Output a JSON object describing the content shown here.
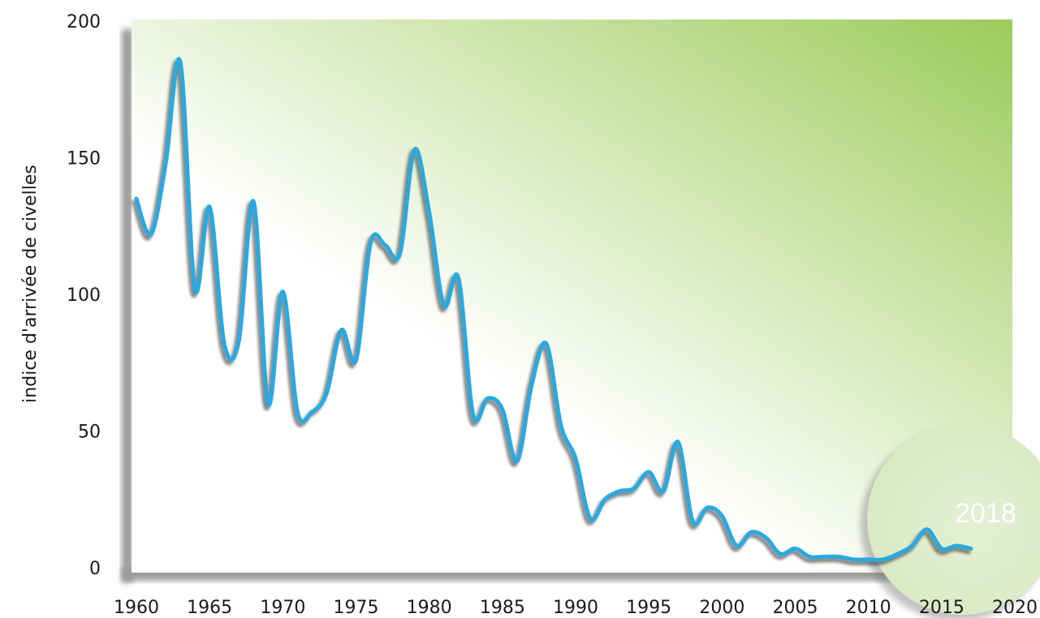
{
  "colors": {
    "line": "#29a9e0",
    "line_shadow": "#2a2a2a",
    "gradient_start": "#ffffff",
    "gradient_end": "#9ccb5a",
    "annotation_circle": "#d8e9c2",
    "text": "#1a1a1a"
  },
  "chart_data": {
    "type": "line",
    "title": "",
    "xlabel": "",
    "ylabel": "indice d'arrivée de civelles",
    "xlim": [
      1960,
      2020
    ],
    "ylim": [
      0,
      200
    ],
    "x_ticks": [
      "1960",
      "1965",
      "1970",
      "1975",
      "1980",
      "1985",
      "1990",
      "1995",
      "2000",
      "2005",
      "2010",
      "2015",
      "2020"
    ],
    "y_ticks": [
      "0",
      "50",
      "100",
      "150",
      "200"
    ],
    "grid": false,
    "legend": "none",
    "annotation": {
      "text": "2018",
      "x": 2017.5,
      "y": 13
    },
    "series": [
      {
        "x": [
          1960,
          1961,
          1962,
          1963,
          1964,
          1965,
          1966,
          1967,
          1968,
          1969,
          1970,
          1971,
          1972,
          1973,
          1974,
          1975,
          1976,
          1977,
          1978,
          1979,
          1980,
          1981,
          1982,
          1983,
          1984,
          1985,
          1986,
          1987,
          1988,
          1989,
          1990,
          1991,
          1992,
          1993,
          1994,
          1995,
          1996,
          1997,
          1998,
          1999,
          2000,
          2001,
          2002,
          2003,
          2004,
          2005,
          2006,
          2007,
          2008,
          2009,
          2010,
          2011,
          2012,
          2013,
          2014,
          2015,
          2016,
          2017
        ],
        "values": [
          135,
          122,
          148,
          185,
          102,
          132,
          82,
          83,
          134,
          60,
          101,
          57,
          57,
          64,
          87,
          76,
          119,
          118,
          115,
          153,
          130,
          96,
          106,
          56,
          62,
          58,
          39,
          67,
          82,
          52,
          40,
          18,
          25,
          28,
          29,
          35,
          28,
          46,
          17,
          22,
          19,
          8,
          13,
          11,
          5,
          7,
          4,
          4,
          4,
          3,
          3,
          3,
          5,
          8,
          14,
          7,
          8,
          7
        ]
      }
    ]
  }
}
